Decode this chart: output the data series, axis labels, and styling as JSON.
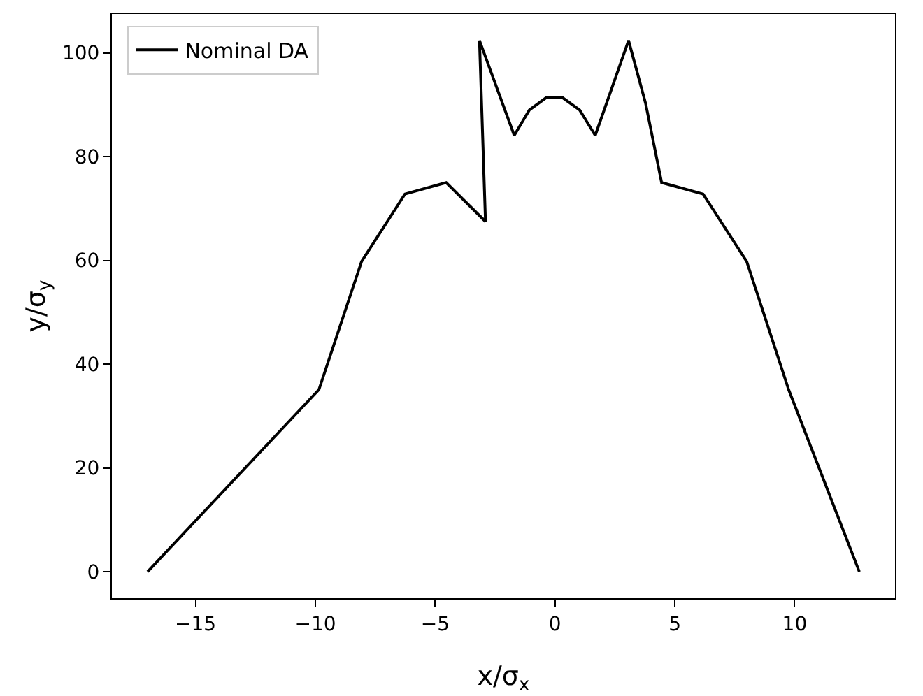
{
  "chart_data": {
    "type": "line",
    "xlabel": "x/σ$_{x}$",
    "ylabel": "y/σ$_{y}$",
    "x": [
      -17.0,
      -9.85,
      -8.07,
      -6.26,
      -4.54,
      -2.9,
      -3.15,
      -1.7,
      -1.07,
      -0.36,
      0.31,
      1.03,
      1.68,
      3.07,
      3.78,
      4.45,
      6.18,
      8.0,
      9.75,
      12.7
    ],
    "series": [
      {
        "name": "Nominal DA",
        "color": "#000000",
        "values": [
          0,
          35.1,
          59.8,
          72.8,
          75.0,
          67.5,
          102.4,
          84.1,
          89.0,
          91.4,
          91.4,
          89.0,
          84.1,
          102.4,
          90.3,
          75.0,
          72.8,
          59.8,
          35.1,
          0
        ]
      }
    ],
    "xlim": [
      -18.49,
      14.19
    ],
    "ylim": [
      -5.1,
      107.5
    ],
    "xticks": [
      {
        "value": -15,
        "label": "−15"
      },
      {
        "value": -10,
        "label": "−10"
      },
      {
        "value": -5,
        "label": "−5"
      },
      0,
      5,
      10
    ],
    "yticks": [
      0,
      20,
      40,
      60,
      80,
      100
    ],
    "grid": false,
    "legend": "top left",
    "marker": "none",
    "line_style": "solid"
  }
}
